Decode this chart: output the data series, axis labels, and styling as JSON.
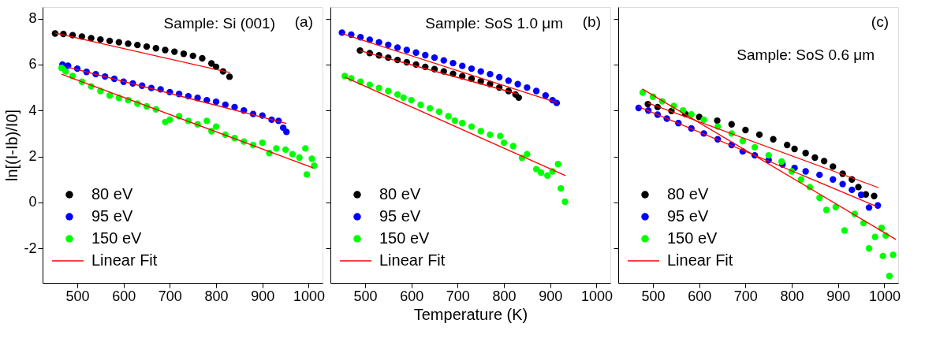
{
  "chart_data": [
    {
      "type": "scatter",
      "ylabel": "ln[(I-Ib)/I0]",
      "annotations": [
        "Sample: Si (001)",
        "(a)"
      ],
      "marker": "circle",
      "legend": "bottom left",
      "grid": false,
      "xlim": [
        425,
        1030
      ],
      "ylim": [
        -3.5,
        8.5
      ],
      "xticks": [
        500,
        600,
        700,
        800,
        900,
        1000
      ],
      "yticks": [
        -2,
        0,
        2,
        4,
        6,
        8
      ],
      "series": [
        {
          "name": "80 eV",
          "color": "#000000",
          "x": [
            452,
            470,
            490,
            510,
            530,
            550,
            570,
            590,
            610,
            630,
            650,
            670,
            690,
            710,
            730,
            750,
            770,
            790,
            800,
            815,
            829
          ],
          "values": [
            7.35,
            7.33,
            7.28,
            7.22,
            7.15,
            7.09,
            7.03,
            6.97,
            6.91,
            6.85,
            6.78,
            6.71,
            6.63,
            6.56,
            6.47,
            6.38,
            6.27,
            6.05,
            5.9,
            5.7,
            5.47
          ]
        },
        {
          "name": "95 eV",
          "color": "#0000ff",
          "x": [
            468,
            480,
            500,
            520,
            540,
            560,
            580,
            600,
            620,
            640,
            660,
            680,
            700,
            720,
            740,
            760,
            780,
            800,
            820,
            840,
            860,
            880,
            900,
            920,
            935,
            945,
            952
          ],
          "values": [
            6.0,
            5.95,
            5.82,
            5.68,
            5.58,
            5.48,
            5.38,
            5.25,
            5.18,
            5.08,
            4.98,
            4.92,
            4.8,
            4.72,
            4.62,
            4.55,
            4.45,
            4.38,
            4.25,
            4.15,
            4.0,
            3.85,
            3.78,
            3.6,
            3.55,
            3.25,
            3.07
          ]
        },
        {
          "name": "150 eV",
          "color": "#00ff00",
          "x": [
            466,
            475,
            490,
            510,
            530,
            550,
            570,
            590,
            610,
            630,
            650,
            670,
            690,
            700,
            720,
            740,
            760,
            780,
            790,
            800,
            820,
            840,
            860,
            880,
            900,
            915,
            930,
            950,
            965,
            980,
            993,
            996,
            1007,
            1012
          ],
          "values": [
            5.85,
            5.7,
            5.5,
            5.25,
            5.05,
            4.85,
            4.65,
            4.55,
            4.45,
            4.3,
            4.18,
            4.05,
            3.5,
            3.6,
            3.75,
            3.55,
            3.4,
            3.55,
            3.1,
            3.3,
            2.95,
            2.8,
            2.65,
            2.5,
            2.6,
            2.15,
            2.35,
            2.3,
            2.1,
            1.95,
            2.35,
            1.22,
            1.9,
            1.6
          ]
        },
        {
          "name": "Linear Fit",
          "type": "line",
          "marker": "none",
          "line_style": "solid",
          "color": "#ff0000",
          "x": [
            452,
            830
          ],
          "values": [
            7.37,
            5.65
          ]
        },
        {
          "type": "line",
          "marker": "none",
          "line_style": "solid",
          "color": "#ff0000",
          "x": [
            479,
            952
          ],
          "values": [
            5.89,
            3.44
          ]
        },
        {
          "type": "line",
          "marker": "none",
          "line_style": "solid",
          "color": "#ff0000",
          "x": [
            466,
            1010
          ],
          "values": [
            5.58,
            1.5
          ]
        }
      ]
    },
    {
      "type": "scatter",
      "xlabel": "Temperature (K)",
      "annotations": [
        "Sample: SoS 1.0 μm",
        "(b)"
      ],
      "marker": "circle",
      "legend": "bottom left",
      "grid": false,
      "tick_labels": "x",
      "xlim": [
        425,
        1030
      ],
      "ylim": [
        -3.5,
        8.5
      ],
      "xticks": [
        500,
        600,
        700,
        800,
        900,
        1000
      ],
      "yticks": [
        -2,
        0,
        2,
        4,
        6,
        8
      ],
      "series": [
        {
          "name": "80 eV",
          "color": "#000000",
          "x": [
            489,
            510,
            530,
            550,
            570,
            590,
            610,
            630,
            650,
            670,
            690,
            710,
            730,
            750,
            770,
            790,
            810,
            825,
            832
          ],
          "values": [
            6.61,
            6.5,
            6.4,
            6.3,
            6.2,
            6.1,
            6.0,
            5.9,
            5.8,
            5.7,
            5.6,
            5.49,
            5.38,
            5.27,
            5.15,
            5.0,
            4.85,
            4.7,
            4.56
          ]
        },
        {
          "name": "95 eV",
          "color": "#0000ff",
          "x": [
            450,
            470,
            490,
            510,
            530,
            550,
            570,
            590,
            610,
            630,
            650,
            670,
            690,
            710,
            730,
            750,
            770,
            790,
            810,
            830,
            850,
            870,
            890,
            905,
            914
          ],
          "values": [
            7.39,
            7.3,
            7.19,
            7.08,
            6.97,
            6.86,
            6.74,
            6.63,
            6.52,
            6.41,
            6.3,
            6.18,
            6.06,
            5.94,
            5.82,
            5.7,
            5.58,
            5.45,
            5.3,
            5.15,
            5.0,
            4.85,
            4.65,
            4.45,
            4.33
          ]
        },
        {
          "name": "150 eV",
          "color": "#00ff00",
          "x": [
            456,
            470,
            490,
            510,
            530,
            550,
            570,
            583,
            600,
            620,
            640,
            660,
            680,
            694,
            710,
            730,
            750,
            770,
            792,
            800,
            820,
            839,
            850,
            870,
            880,
            894,
            905,
            917,
            923,
            932
          ],
          "values": [
            5.5,
            5.4,
            5.25,
            5.12,
            4.98,
            4.85,
            4.7,
            4.56,
            4.45,
            4.25,
            4.1,
            3.95,
            3.75,
            3.56,
            3.45,
            3.3,
            3.1,
            2.95,
            2.89,
            2.6,
            2.45,
            1.94,
            2.1,
            1.45,
            1.3,
            1.17,
            1.35,
            1.67,
            0.61,
            0.03
          ]
        },
        {
          "name": "Linear Fit",
          "type": "line",
          "marker": "none",
          "line_style": "solid",
          "color": "#ff0000",
          "x": [
            456,
            933
          ],
          "values": [
            5.45,
            1.17
          ]
        },
        {
          "type": "line",
          "marker": "none",
          "line_style": "solid",
          "color": "#ff0000",
          "x": [
            450,
            914
          ],
          "values": [
            7.35,
            4.35
          ]
        },
        {
          "type": "line",
          "marker": "none",
          "line_style": "solid",
          "color": "#ff0000",
          "x": [
            489,
            830
          ],
          "values": [
            6.6,
            4.72
          ]
        }
      ]
    },
    {
      "type": "scatter",
      "annotations": [
        "Sample: SoS 0.6 μm",
        "(c)"
      ],
      "marker": "circle",
      "legend": "bottom left",
      "grid": false,
      "tick_labels": "x",
      "xlim": [
        425,
        1030
      ],
      "ylim": [
        -3.5,
        8.5
      ],
      "xticks": [
        500,
        600,
        700,
        800,
        900,
        1000
      ],
      "yticks": [
        -2,
        0,
        2,
        4,
        6,
        8
      ],
      "series": [
        {
          "name": "80 eV",
          "color": "#000000",
          "x": [
            489,
            510,
            540,
            570,
            600,
            639,
            670,
            700,
            730,
            760,
            790,
            806,
            830,
            850,
            870,
            889,
            910,
            930,
            944,
            960,
            978
          ],
          "values": [
            4.28,
            4.15,
            3.98,
            3.85,
            3.72,
            3.56,
            3.4,
            3.15,
            2.95,
            2.75,
            2.5,
            2.33,
            2.15,
            1.95,
            1.8,
            1.56,
            1.25,
            1.0,
            0.67,
            0.35,
            0.28
          ]
        },
        {
          "name": "95 eV",
          "color": "#0000ff",
          "x": [
            469,
            490,
            510,
            530,
            555,
            583,
            610,
            640,
            670,
            694,
            720,
            750,
            780,
            806,
            830,
            860,
            889,
            910,
            930,
            950,
            967,
            986
          ],
          "values": [
            4.11,
            4.0,
            3.82,
            3.65,
            3.45,
            3.22,
            3.0,
            2.75,
            2.5,
            2.22,
            2.05,
            1.85,
            1.65,
            1.5,
            1.35,
            1.2,
            1.0,
            0.8,
            0.55,
            0.33,
            -0.22,
            -0.13
          ]
        },
        {
          "name": "150 eV",
          "color": "#00ff00",
          "x": [
            478,
            500,
            520,
            545,
            565,
            583,
            610,
            640,
            670,
            694,
            720,
            750,
            778,
            800,
            820,
            839,
            860,
            875,
            895,
            914,
            936,
            955,
            967,
            980,
            994,
            997,
            1003,
            1011,
            1019
          ],
          "values": [
            4.78,
            4.6,
            4.4,
            4.2,
            4.0,
            3.83,
            3.6,
            3.3,
            3.0,
            2.67,
            2.4,
            2.05,
            1.78,
            1.35,
            1.0,
            0.67,
            0.2,
            -0.33,
            -0.2,
            -1.22,
            -0.5,
            -0.9,
            -2.0,
            -1.5,
            -1.11,
            -2.33,
            -1.44,
            -3.2,
            -2.28
          ]
        },
        {
          "name": "Linear Fit",
          "type": "line",
          "marker": "none",
          "line_style": "solid",
          "color": "#ff0000",
          "x": [
            477,
            1025
          ],
          "values": [
            4.94,
            -1.61
          ]
        },
        {
          "type": "line",
          "marker": "none",
          "line_style": "solid",
          "color": "#ff0000",
          "x": [
            489,
            988
          ],
          "values": [
            4.33,
            0.64
          ]
        },
        {
          "type": "line",
          "marker": "none",
          "line_style": "solid",
          "color": "#ff0000",
          "x": [
            469,
            983
          ],
          "values": [
            4.17,
            -0.17
          ]
        }
      ]
    }
  ]
}
